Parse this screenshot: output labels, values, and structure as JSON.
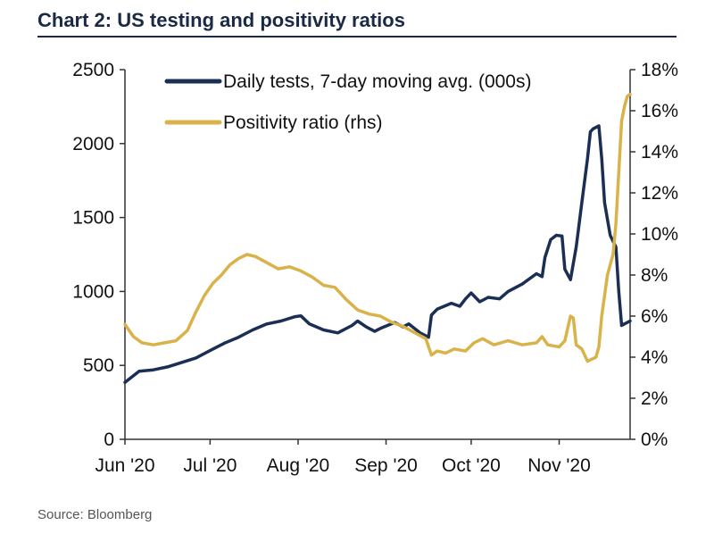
{
  "chart_data": {
    "type": "line",
    "title": "Chart 2: US testing and positivity ratios",
    "source": "Source: Bloomberg",
    "x_range": [
      0,
      175
    ],
    "x_unit": "days since 1 Jun 2020",
    "x_ticks": [
      {
        "day": 0,
        "label": "Jun '20"
      },
      {
        "day": 30,
        "label": "Jul '20"
      },
      {
        "day": 61,
        "label": "Aug '20"
      },
      {
        "day": 92,
        "label": "Sep '20"
      },
      {
        "day": 122,
        "label": "Oct '20"
      },
      {
        "day": 153,
        "label": "Nov '20"
      }
    ],
    "y_left": {
      "range": [
        0,
        2500
      ],
      "ticks": [
        {
          "value": 0,
          "label": "0"
        },
        {
          "value": 500,
          "label": "500"
        },
        {
          "value": 1000,
          "label": "1000"
        },
        {
          "value": 1500,
          "label": "1500"
        },
        {
          "value": 2000,
          "label": "2000"
        },
        {
          "value": 2500,
          "label": "2500"
        }
      ]
    },
    "y_right": {
      "range": [
        0,
        18
      ],
      "ticks": [
        {
          "value": 0,
          "label": "0%"
        },
        {
          "value": 2,
          "label": "2%"
        },
        {
          "value": 4,
          "label": "4%"
        },
        {
          "value": 6,
          "label": "6%"
        },
        {
          "value": 8,
          "label": "8%"
        },
        {
          "value": 10,
          "label": "10%"
        },
        {
          "value": 12,
          "label": "12%"
        },
        {
          "value": 14,
          "label": "14%"
        },
        {
          "value": 16,
          "label": "16%"
        },
        {
          "value": 18,
          "label": "18%"
        }
      ]
    },
    "series": [
      {
        "name": "Daily tests, 7-day moving avg. (000s)",
        "axis": "left",
        "color": "#1b2f55",
        "points": [
          [
            0,
            385
          ],
          [
            5,
            460
          ],
          [
            10,
            470
          ],
          [
            15,
            490
          ],
          [
            20,
            520
          ],
          [
            25,
            550
          ],
          [
            30,
            600
          ],
          [
            35,
            650
          ],
          [
            40,
            690
          ],
          [
            45,
            740
          ],
          [
            50,
            780
          ],
          [
            55,
            800
          ],
          [
            60,
            830
          ],
          [
            62,
            835
          ],
          [
            65,
            780
          ],
          [
            70,
            740
          ],
          [
            75,
            720
          ],
          [
            80,
            770
          ],
          [
            82,
            800
          ],
          [
            85,
            760
          ],
          [
            88,
            730
          ],
          [
            90,
            750
          ],
          [
            95,
            790
          ],
          [
            98,
            760
          ],
          [
            100,
            780
          ],
          [
            104,
            720
          ],
          [
            107,
            690
          ],
          [
            108,
            840
          ],
          [
            110,
            880
          ],
          [
            115,
            920
          ],
          [
            118,
            900
          ],
          [
            120,
            950
          ],
          [
            122,
            990
          ],
          [
            125,
            930
          ],
          [
            128,
            960
          ],
          [
            132,
            950
          ],
          [
            135,
            1000
          ],
          [
            140,
            1050
          ],
          [
            145,
            1120
          ],
          [
            147,
            1100
          ],
          [
            148,
            1230
          ],
          [
            150,
            1350
          ],
          [
            152,
            1380
          ],
          [
            154,
            1375
          ],
          [
            155,
            1150
          ],
          [
            157,
            1080
          ],
          [
            159,
            1300
          ],
          [
            161,
            1600
          ],
          [
            163,
            1900
          ],
          [
            164,
            2080
          ],
          [
            165,
            2100
          ],
          [
            167,
            2120
          ],
          [
            168,
            1900
          ],
          [
            169,
            1600
          ],
          [
            171,
            1380
          ],
          [
            173,
            1300
          ],
          [
            174,
            1000
          ],
          [
            175,
            770
          ],
          [
            176,
            780
          ],
          [
            178,
            800
          ]
        ]
      },
      {
        "name": "Positivity ratio (rhs)",
        "axis": "right",
        "color": "#d9b34a",
        "points": [
          [
            0,
            5.6
          ],
          [
            3,
            5.0
          ],
          [
            6,
            4.7
          ],
          [
            10,
            4.6
          ],
          [
            14,
            4.7
          ],
          [
            18,
            4.8
          ],
          [
            22,
            5.3
          ],
          [
            25,
            6.2
          ],
          [
            28,
            7.0
          ],
          [
            31,
            7.6
          ],
          [
            34,
            8.0
          ],
          [
            37,
            8.5
          ],
          [
            40,
            8.8
          ],
          [
            43,
            9.0
          ],
          [
            46,
            8.9
          ],
          [
            50,
            8.6
          ],
          [
            54,
            8.3
          ],
          [
            58,
            8.4
          ],
          [
            62,
            8.2
          ],
          [
            66,
            7.9
          ],
          [
            70,
            7.5
          ],
          [
            74,
            7.4
          ],
          [
            78,
            6.8
          ],
          [
            82,
            6.3
          ],
          [
            86,
            6.1
          ],
          [
            90,
            6.0
          ],
          [
            94,
            5.7
          ],
          [
            98,
            5.5
          ],
          [
            102,
            5.2
          ],
          [
            106,
            4.9
          ],
          [
            108,
            4.1
          ],
          [
            110,
            4.3
          ],
          [
            113,
            4.2
          ],
          [
            116,
            4.4
          ],
          [
            120,
            4.3
          ],
          [
            123,
            4.7
          ],
          [
            126,
            4.9
          ],
          [
            130,
            4.6
          ],
          [
            135,
            4.8
          ],
          [
            140,
            4.6
          ],
          [
            145,
            4.7
          ],
          [
            147,
            5.0
          ],
          [
            149,
            4.6
          ],
          [
            153,
            4.5
          ],
          [
            155,
            4.8
          ],
          [
            157,
            6.0
          ],
          [
            158,
            5.9
          ],
          [
            159,
            4.6
          ],
          [
            161,
            4.4
          ],
          [
            163,
            3.8
          ],
          [
            166,
            4.0
          ],
          [
            167,
            4.5
          ],
          [
            168,
            6.0
          ],
          [
            170,
            8.0
          ],
          [
            172,
            9.0
          ],
          [
            173,
            10.5
          ],
          [
            174,
            13.0
          ],
          [
            175,
            15.5
          ],
          [
            176,
            16.2
          ],
          [
            177,
            16.7
          ],
          [
            178,
            16.8
          ]
        ]
      }
    ],
    "legend": "top-left"
  }
}
